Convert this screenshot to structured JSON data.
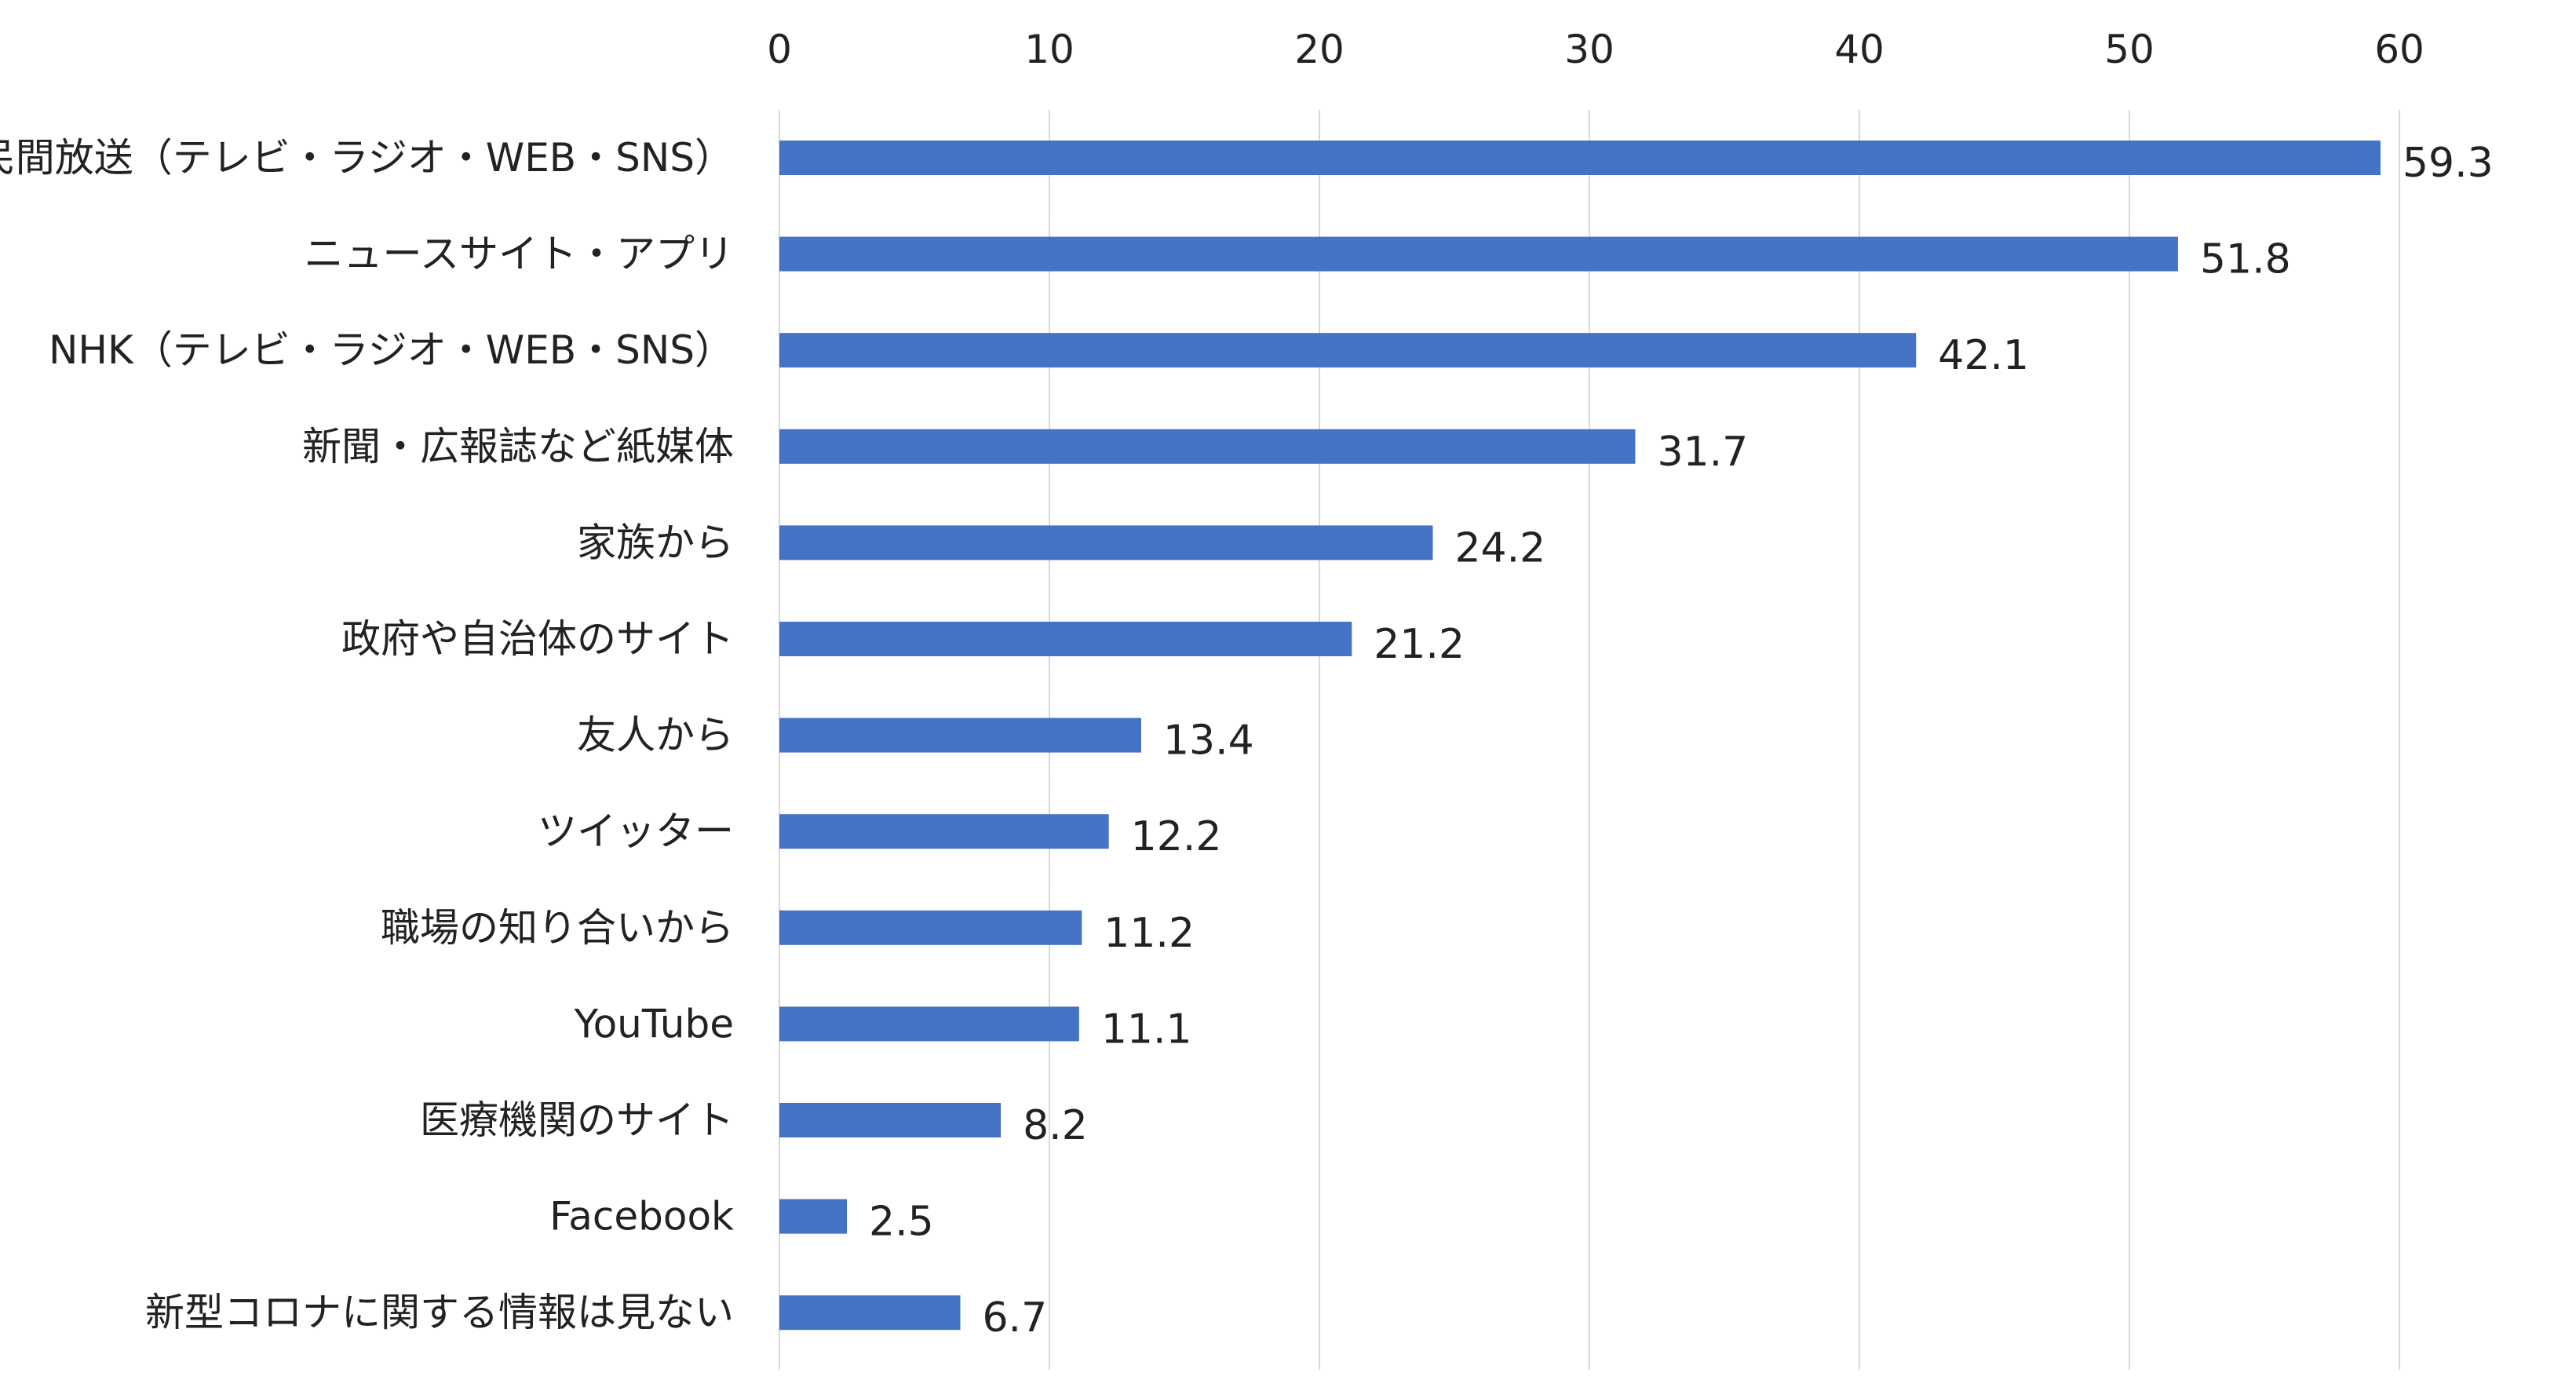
{
  "chart_data": {
    "type": "bar",
    "orientation": "horizontal",
    "title": "",
    "xlabel": "",
    "ylabel": "",
    "xlim": [
      0,
      60
    ],
    "x_ticks": [
      0,
      10,
      20,
      30,
      40,
      50,
      60
    ],
    "x_axis_position": "top",
    "grid": "vertical",
    "legend": "none",
    "bar_color": "#4472C4",
    "grid_color": "#D9D9D9",
    "categories": [
      "民間放送（テレビ・ラジオ・WEB・SNS）",
      "ニュースサイト・アプリ",
      "NHK（テレビ・ラジオ・WEB・SNS）",
      "新聞・広報誌など紙媒体",
      "家族から",
      "政府や自治体のサイト",
      "友人から",
      "ツイッター",
      "職場の知り合いから",
      "YouTube",
      "医療機関のサイト",
      "Facebook",
      "新型コロナに関する情報は見ない"
    ],
    "values": [
      59.3,
      51.8,
      42.1,
      31.7,
      24.2,
      21.2,
      13.4,
      12.2,
      11.2,
      11.1,
      8.2,
      2.5,
      6.7
    ],
    "value_labels": [
      "59.3",
      "51.8",
      "42.1",
      "31.7",
      "24.2",
      "21.2",
      "13.4",
      "12.2",
      "11.2",
      "11.1",
      "8.2",
      "2.5",
      "6.7"
    ]
  }
}
